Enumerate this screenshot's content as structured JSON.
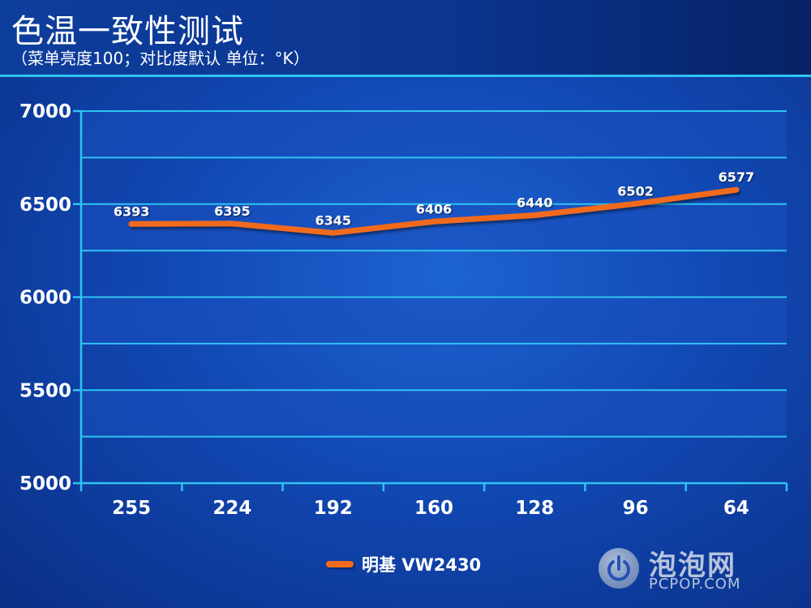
{
  "header": {
    "title": "色温一致性测试",
    "subtitle": "（菜单亮度100；对比度默认 单位：°K）"
  },
  "colors": {
    "line": "#f26b1d",
    "grid": "#2fc3f2",
    "band": "#1a4fbd",
    "text": "#ffffff"
  },
  "watermark": {
    "name": "泡泡网",
    "url": "PCPOP.COM",
    "icon": "power-icon"
  },
  "chart_data": {
    "type": "line",
    "title": "",
    "xlabel": "",
    "ylabel": "",
    "categories": [
      "255",
      "224",
      "192",
      "160",
      "128",
      "96",
      "64"
    ],
    "series": [
      {
        "name": "明基 VW2430",
        "values": [
          6393,
          6395,
          6345,
          6406,
          6440,
          6502,
          6577
        ]
      }
    ],
    "ylim": [
      5000,
      7000
    ],
    "yticks": [
      5000,
      5500,
      6000,
      6500,
      7000
    ],
    "grid": true,
    "legend_position": "bottom-center",
    "data_labels": true
  }
}
